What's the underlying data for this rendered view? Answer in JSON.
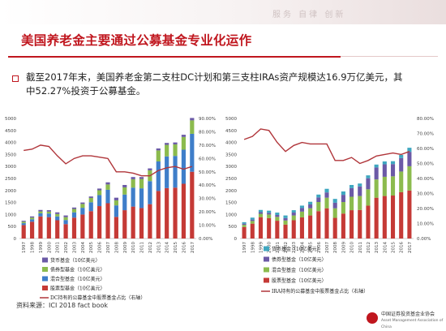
{
  "header": {
    "watermark": "服务 自律 创新",
    "title": "美国养老金主要通过公募基金专业化运作"
  },
  "body": {
    "paragraph": "截至2017年末，美国养老金第二支柱DC计划和第三支柱IRAs资产规模达16.9万亿美元，其中52.27%投资于公募基金。"
  },
  "source": "资料来源：ICI 2018 fact book",
  "footer": {
    "org_cn": "中国证券投资基金业协会",
    "org_en": "Asset Management Association of China"
  },
  "colors": {
    "money": "#6b5aa6",
    "bond": "#8cbb4e",
    "hybrid": "#3f7ec9",
    "equity": "#c53a36",
    "line": "#b0353a",
    "top_extra": "#3fa7c0"
  },
  "chart_data": [
    {
      "type": "bar",
      "stacked": true,
      "categories": [
        "1997",
        "1998",
        "1999",
        "2000",
        "2001",
        "2002",
        "2003",
        "2004",
        "2005",
        "2006",
        "2007",
        "2008",
        "2009",
        "2010",
        "2011",
        "2012",
        "2013",
        "2014",
        "2015",
        "2016",
        "2017"
      ],
      "series": [
        {
          "name": "股票型基金（10亿美元）",
          "values": [
            560,
            700,
            920,
            890,
            760,
            600,
            870,
            1000,
            1140,
            1350,
            1470,
            900,
            1180,
            1330,
            1270,
            1430,
            1980,
            2100,
            2120,
            2280,
            2780
          ]
        },
        {
          "name": "混合型基金（10亿美元）",
          "values": [
            80,
            100,
            130,
            150,
            160,
            170,
            220,
            280,
            370,
            460,
            560,
            480,
            650,
            790,
            820,
            960,
            1230,
            1320,
            1320,
            1420,
            1580
          ]
        },
        {
          "name": "债券型基金（10亿美元）",
          "values": [
            60,
            70,
            80,
            80,
            100,
            120,
            140,
            160,
            180,
            200,
            220,
            210,
            300,
            350,
            390,
            450,
            460,
            480,
            480,
            530,
            560
          ]
        },
        {
          "name": "货币基金（10亿美元）",
          "values": [
            40,
            50,
            60,
            60,
            70,
            70,
            60,
            60,
            60,
            70,
            90,
            110,
            100,
            90,
            80,
            80,
            80,
            80,
            80,
            90,
            100
          ]
        }
      ],
      "line": {
        "name": "DC持有的公募基金中股票基金占比（右轴）",
        "values": [
          66,
          67,
          70,
          69,
          62,
          56,
          60,
          62,
          62,
          61,
          60,
          50,
          50,
          49,
          47,
          47,
          51,
          53,
          54,
          52,
          54
        ]
      },
      "ylim": [
        0,
        5000
      ],
      "yticks": [
        "0",
        "500",
        "1000",
        "1500",
        "2000",
        "2500",
        "3000",
        "3500",
        "4000",
        "4500",
        "5000"
      ],
      "y2lim": [
        0,
        90
      ],
      "y2ticks": [
        "0.00%",
        "10.00%",
        "20.00%",
        "30.00%",
        "40.00%",
        "50.00%",
        "60.00%",
        "70.00%",
        "80.00%",
        "90.00%"
      ],
      "legend": [
        {
          "label": "货币基金（10亿美元）",
          "color": "#6b5aa6"
        },
        {
          "label": "债券型基金（10亿美元）",
          "color": "#8cbb4e"
        },
        {
          "label": "混合型基金（10亿美元）",
          "color": "#3f7ec9"
        },
        {
          "label": "股票型基金（10亿美元）",
          "color": "#c53a36"
        },
        {
          "label": "DC持有的公募基金中股票基金占比（右轴）",
          "color": "#b0353a",
          "line": true
        }
      ]
    },
    {
      "type": "bar",
      "stacked": true,
      "categories": [
        "1997",
        "1998",
        "1999",
        "2000",
        "2001",
        "2002",
        "2003",
        "2004",
        "2005",
        "2006",
        "2007",
        "2008",
        "2009",
        "2010",
        "2011",
        "2012",
        "2013",
        "2014",
        "2015",
        "2016",
        "2017"
      ],
      "series": [
        {
          "name": "股票基金（10亿美元）",
          "values": [
            480,
            620,
            890,
            850,
            740,
            580,
            760,
            880,
            960,
            1140,
            1260,
            860,
            1040,
            1180,
            1190,
            1370,
            1700,
            1770,
            1790,
            1930,
            2000
          ]
        },
        {
          "name": "混合型基金（10亿美元）",
          "values": [
            90,
            110,
            140,
            150,
            160,
            170,
            200,
            240,
            300,
            380,
            440,
            400,
            480,
            560,
            580,
            680,
            760,
            800,
            800,
            860,
            1010
          ]
        },
        {
          "name": "债券型基金（10亿美元）",
          "values": [
            50,
            60,
            70,
            70,
            80,
            100,
            120,
            150,
            160,
            190,
            220,
            230,
            300,
            360,
            400,
            460,
            500,
            520,
            510,
            560,
            600
          ]
        },
        {
          "name": "货币基金（10亿美元）",
          "values": [
            60,
            80,
            90,
            90,
            100,
            110,
            100,
            100,
            110,
            120,
            150,
            160,
            140,
            130,
            120,
            120,
            120,
            120,
            120,
            130,
            170
          ]
        }
      ],
      "line": {
        "name": "IRA持有的公募基金中股票基金占比（右轴）",
        "values": [
          66,
          68,
          73,
          72,
          64,
          58,
          62,
          64,
          63,
          63,
          63,
          52,
          52,
          54,
          50,
          52,
          55,
          56,
          57,
          56,
          58
        ]
      },
      "ylim": [
        0,
        5000
      ],
      "yticks": [
        "0",
        "500",
        "1000",
        "1500",
        "2000",
        "2500",
        "3000",
        "3500",
        "4000",
        "4500",
        "5000"
      ],
      "y2lim": [
        0,
        80
      ],
      "y2ticks": [
        "0.00%",
        "10.00%",
        "20.00%",
        "30.00%",
        "40.00%",
        "50.00%",
        "60.00%",
        "70.00%",
        "80.00%"
      ],
      "legend": [
        {
          "label": "货币基金（10亿美元）",
          "color": "#3fa7c0"
        },
        {
          "label": "债券型基金（10亿美元）",
          "color": "#6b5aa6"
        },
        {
          "label": "混合型基金（10亿美元）",
          "color": "#8cbb4e"
        },
        {
          "label": "股票型基金（10亿美元）",
          "color": "#c53a36"
        },
        {
          "label": "IRA持有的公募基金中股票基金占比（右轴）",
          "color": "#b0353a",
          "line": true
        }
      ]
    }
  ]
}
